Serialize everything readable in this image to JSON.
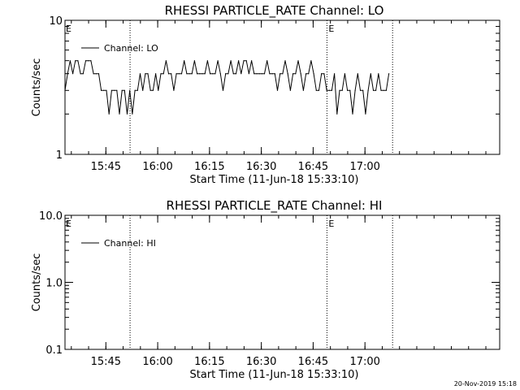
{
  "chart_data": [
    {
      "type": "line",
      "title": "RHESSI PARTICLE_RATE Channel: LO",
      "xlabel": "Start Time (11-Jun-18 15:33:10)",
      "ylabel": "Counts/sec",
      "y_scale": "log",
      "ylim": [
        1,
        10
      ],
      "y_ticks": [
        {
          "value": 1,
          "label": "1"
        },
        {
          "value": 10,
          "label": "10"
        }
      ],
      "x_ticks": [
        {
          "value": "15:45",
          "label": "15:45"
        },
        {
          "value": "16:00",
          "label": "16:00"
        },
        {
          "value": "16:15",
          "label": "16:15"
        },
        {
          "value": "16:30",
          "label": "16:30"
        },
        {
          "value": "16:45",
          "label": "16:45"
        },
        {
          "value": "17:00",
          "label": "17:00"
        }
      ],
      "xlim": [
        "15:33:10",
        "17:39:00"
      ],
      "legend_position": "top-left",
      "series": [
        {
          "name": "Channel: LO",
          "x": [
            "15:33:10",
            "15:33:55",
            "15:34:40",
            "15:35:25",
            "15:36:10",
            "15:36:55",
            "15:37:40",
            "15:38:25",
            "15:39:10",
            "15:39:55",
            "15:40:40",
            "15:41:25",
            "15:42:10",
            "15:42:55",
            "15:43:40",
            "15:44:25",
            "15:45:10",
            "15:45:55",
            "15:46:40",
            "15:47:25",
            "15:48:10",
            "15:48:55",
            "15:49:40",
            "15:50:25",
            "15:51:10",
            "15:51:55",
            "15:52:40",
            "15:53:25",
            "15:54:10",
            "15:54:55",
            "15:55:40",
            "15:56:25",
            "15:57:10",
            "15:57:55",
            "15:58:40",
            "15:59:25",
            "16:00:10",
            "16:00:55",
            "16:01:40",
            "16:02:25",
            "16:03:10",
            "16:03:55",
            "16:04:40",
            "16:05:25",
            "16:06:10",
            "16:06:55",
            "16:07:40",
            "16:08:25",
            "16:09:10",
            "16:09:55",
            "16:10:40",
            "16:11:25",
            "16:12:10",
            "16:12:55",
            "16:13:40",
            "16:14:25",
            "16:15:10",
            "16:15:55",
            "16:16:40",
            "16:17:25",
            "16:18:10",
            "16:18:55",
            "16:19:40",
            "16:20:25",
            "16:21:10",
            "16:21:55",
            "16:22:40",
            "16:23:25",
            "16:24:10",
            "16:24:55",
            "16:25:40",
            "16:26:25",
            "16:27:10",
            "16:27:55",
            "16:28:40",
            "16:29:25",
            "16:30:10",
            "16:30:55",
            "16:31:40",
            "16:32:25",
            "16:33:10",
            "16:33:55",
            "16:34:40",
            "16:35:25",
            "16:36:10",
            "16:36:55",
            "16:37:40",
            "16:38:25",
            "16:39:10",
            "16:39:55",
            "16:40:40",
            "16:41:25",
            "16:42:10",
            "16:42:55",
            "16:43:40",
            "16:44:25",
            "16:45:10",
            "16:45:55",
            "16:46:40",
            "16:47:25",
            "16:48:10",
            "16:48:55",
            "16:49:40",
            "16:50:25",
            "16:51:10",
            "16:51:55",
            "16:52:40",
            "16:53:25",
            "16:54:10",
            "16:54:55",
            "16:55:40",
            "16:56:25",
            "16:57:10",
            "16:57:55",
            "16:58:40",
            "16:59:25",
            "17:00:10",
            "17:00:55",
            "17:01:40",
            "17:02:25",
            "17:03:10",
            "17:03:55",
            "17:04:40",
            "17:05:25",
            "17:06:10",
            "17:06:55"
          ],
          "values": [
            3,
            4,
            5,
            4,
            5,
            5,
            4,
            4,
            5,
            5,
            5,
            4,
            4,
            4,
            3,
            3,
            3,
            2,
            3,
            3,
            3,
            2,
            3,
            3,
            2,
            3,
            2,
            3,
            3,
            4,
            3,
            4,
            4,
            3,
            3,
            4,
            3,
            4,
            4,
            5,
            4,
            4,
            3,
            4,
            4,
            4,
            5,
            4,
            4,
            4,
            5,
            4,
            4,
            4,
            4,
            5,
            4,
            4,
            4,
            5,
            4,
            3,
            4,
            4,
            5,
            4,
            4,
            5,
            4,
            5,
            5,
            4,
            5,
            4,
            4,
            4,
            4,
            4,
            5,
            4,
            4,
            4,
            3,
            4,
            4,
            5,
            4,
            3,
            4,
            4,
            5,
            4,
            3,
            4,
            4,
            5,
            4,
            3,
            3,
            4,
            4,
            3,
            3,
            3,
            4,
            2,
            3,
            3,
            4,
            3,
            3,
            2,
            3,
            4,
            3,
            3,
            2,
            3,
            4,
            3,
            3,
            4,
            3,
            3,
            3,
            4
          ]
        }
      ],
      "markers": [
        {
          "time": "15:52:00",
          "label": ""
        },
        {
          "time": "16:49:00",
          "label": "E"
        },
        {
          "time": "17:08:00",
          "label": ""
        }
      ],
      "corner_label": "E"
    },
    {
      "type": "line",
      "title": "RHESSI PARTICLE_RATE Channel: HI",
      "xlabel": "Start Time (11-Jun-18 15:33:10)",
      "ylabel": "Counts/sec",
      "y_scale": "log",
      "ylim": [
        0.1,
        10
      ],
      "y_ticks": [
        {
          "value": 0.1,
          "label": "0.1"
        },
        {
          "value": 1,
          "label": "1.0"
        },
        {
          "value": 10,
          "label": "10.0"
        }
      ],
      "x_ticks": [
        {
          "value": "15:45",
          "label": "15:45"
        },
        {
          "value": "16:00",
          "label": "16:00"
        },
        {
          "value": "16:15",
          "label": "16:15"
        },
        {
          "value": "16:30",
          "label": "16:30"
        },
        {
          "value": "16:45",
          "label": "16:45"
        },
        {
          "value": "17:00",
          "label": "17:00"
        }
      ],
      "xlim": [
        "15:33:10",
        "17:39:00"
      ],
      "legend_position": "top-left",
      "series": [
        {
          "name": "Channel: HI",
          "x": [],
          "values": []
        }
      ],
      "markers": [
        {
          "time": "15:52:00",
          "label": ""
        },
        {
          "time": "16:49:00",
          "label": "E"
        },
        {
          "time": "17:08:00",
          "label": ""
        }
      ],
      "corner_label": "E"
    }
  ],
  "footer": {
    "timestamp": "20-Nov-2019 15:18"
  }
}
